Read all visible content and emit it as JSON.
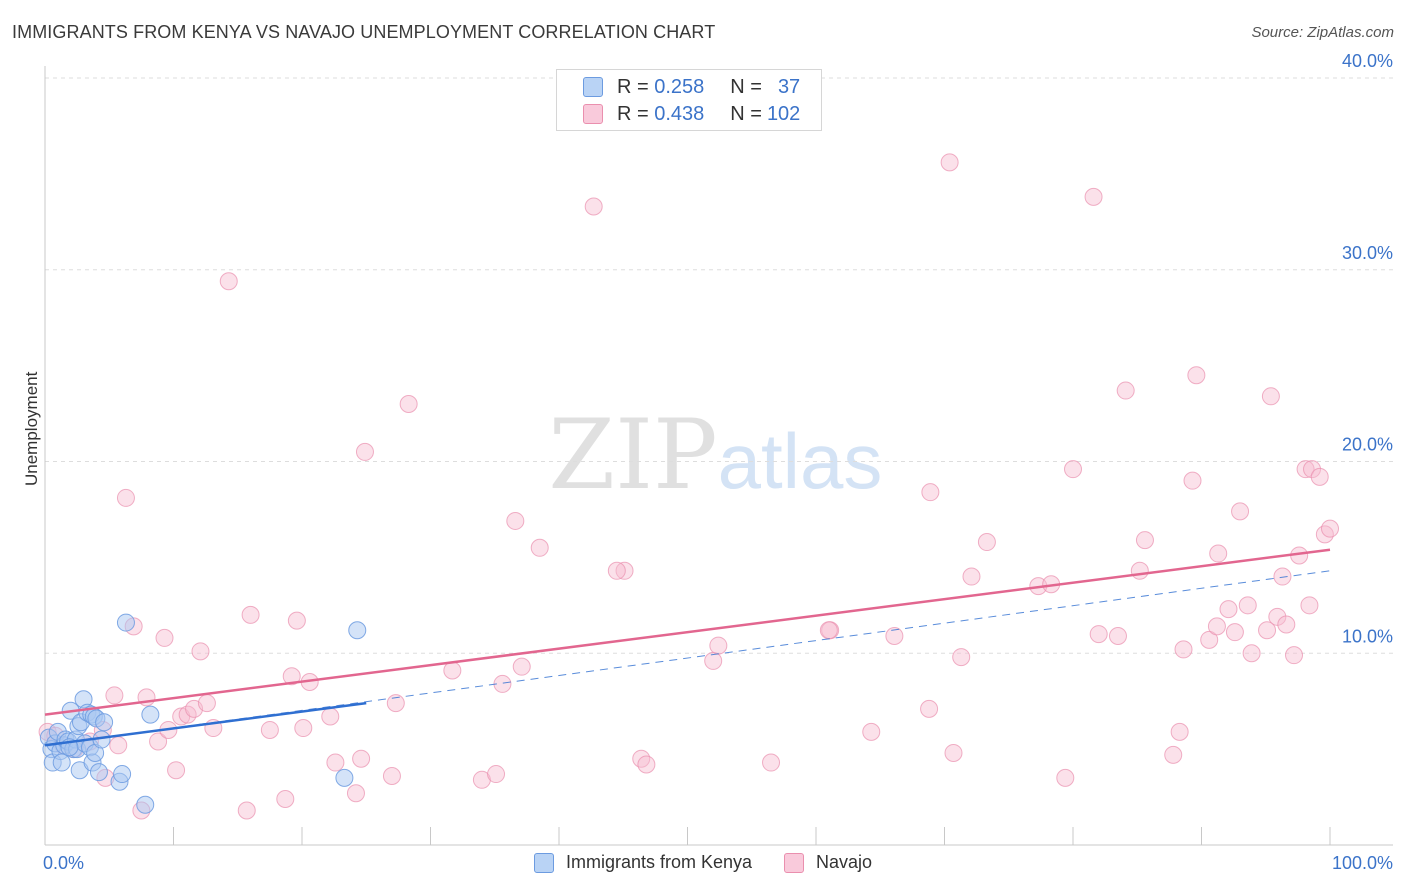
{
  "title": "IMMIGRANTS FROM KENYA VS NAVAJO UNEMPLOYMENT CORRELATION CHART",
  "source": "Source: ZipAtlas.com",
  "watermark": {
    "zip": "ZIP",
    "atlas": "atlas"
  },
  "legend": {
    "rows": [
      {
        "r_label": "R =",
        "r_value": "0.258",
        "n_label": "N =",
        "n_value": "37"
      },
      {
        "r_label": "R =",
        "r_value": "0.438",
        "n_label": "N =",
        "n_value": "102"
      }
    ]
  },
  "colors": {
    "kenya_fill": "#a9c8f2",
    "kenya_stroke": "#6c9be0",
    "kenya_line": "#2f6fd1",
    "navajo_fill": "#f7bcd0",
    "navajo_stroke": "#ea8fae",
    "navajo_line": "#e2668f",
    "grid": "#dddddd",
    "tick_text": "#3b73c9"
  },
  "chart_data": {
    "type": "scatter",
    "title": "IMMIGRANTS FROM KENYA VS NAVAJO UNEMPLOYMENT CORRELATION CHART",
    "xlabel": "",
    "ylabel": "Unemployment",
    "xlim": [
      0,
      100
    ],
    "ylim": [
      0,
      40
    ],
    "x_tick_labels": [
      "0.0%",
      "100.0%"
    ],
    "y_ticks": [
      10,
      20,
      30,
      40
    ],
    "y_tick_labels": [
      "10.0%",
      "20.0%",
      "30.0%",
      "40.0%"
    ],
    "legend_position": "bottom-center",
    "series": [
      {
        "name": "Immigrants from Kenya",
        "r": 0.258,
        "n": 37,
        "trend": {
          "x": [
            0,
            25
          ],
          "y": [
            5.2,
            7.4
          ]
        },
        "dashed_trend": {
          "x": [
            0,
            100
          ],
          "y": [
            5.2,
            14.3
          ]
        },
        "points": [
          [
            0.3,
            5.6
          ],
          [
            0.5,
            5.0
          ],
          [
            0.6,
            4.3
          ],
          [
            0.8,
            5.3
          ],
          [
            1.0,
            5.9
          ],
          [
            1.2,
            4.9
          ],
          [
            1.3,
            4.3
          ],
          [
            1.5,
            5.2
          ],
          [
            1.6,
            5.5
          ],
          [
            1.8,
            5.4
          ],
          [
            2.0,
            7.0
          ],
          [
            2.2,
            5.0
          ],
          [
            2.4,
            5.5
          ],
          [
            2.5,
            5.0
          ],
          [
            2.6,
            6.2
          ],
          [
            2.7,
            3.9
          ],
          [
            2.8,
            6.4
          ],
          [
            3.0,
            7.6
          ],
          [
            3.1,
            5.3
          ],
          [
            3.3,
            6.9
          ],
          [
            3.5,
            5.1
          ],
          [
            3.6,
            6.8
          ],
          [
            3.7,
            4.3
          ],
          [
            3.8,
            6.7
          ],
          [
            3.9,
            4.8
          ],
          [
            4.0,
            6.6
          ],
          [
            4.2,
            3.8
          ],
          [
            4.4,
            5.5
          ],
          [
            4.6,
            6.4
          ],
          [
            5.8,
            3.3
          ],
          [
            6.0,
            3.7
          ],
          [
            6.3,
            11.6
          ],
          [
            7.8,
            2.1
          ],
          [
            8.2,
            6.8
          ],
          [
            23.3,
            3.5
          ],
          [
            24.3,
            11.2
          ],
          [
            1.9,
            5.1
          ]
        ]
      },
      {
        "name": "Navajo",
        "r": 0.438,
        "n": 102,
        "trend": {
          "x": [
            0,
            100
          ],
          "y": [
            6.8,
            15.4
          ]
        },
        "points": [
          [
            0.2,
            5.9
          ],
          [
            0.8,
            5.7
          ],
          [
            1.4,
            5.2
          ],
          [
            2.3,
            5.0
          ],
          [
            3.5,
            5.4
          ],
          [
            4.5,
            6.0
          ],
          [
            4.7,
            3.5
          ],
          [
            5.4,
            7.8
          ],
          [
            5.7,
            5.2
          ],
          [
            6.3,
            18.1
          ],
          [
            6.9,
            11.4
          ],
          [
            7.5,
            1.8
          ],
          [
            7.9,
            7.7
          ],
          [
            8.8,
            5.4
          ],
          [
            9.3,
            10.8
          ],
          [
            9.6,
            6.0
          ],
          [
            10.2,
            3.9
          ],
          [
            10.6,
            6.7
          ],
          [
            11.1,
            6.8
          ],
          [
            11.6,
            7.1
          ],
          [
            12.1,
            10.1
          ],
          [
            12.6,
            7.4
          ],
          [
            13.1,
            6.1
          ],
          [
            14.3,
            29.4
          ],
          [
            15.7,
            1.8
          ],
          [
            16.0,
            12.0
          ],
          [
            17.5,
            6.0
          ],
          [
            18.7,
            2.4
          ],
          [
            19.2,
            8.8
          ],
          [
            19.6,
            11.7
          ],
          [
            20.1,
            6.1
          ],
          [
            20.6,
            8.5
          ],
          [
            22.2,
            6.7
          ],
          [
            22.6,
            4.3
          ],
          [
            24.2,
            2.7
          ],
          [
            24.6,
            4.5
          ],
          [
            24.9,
            20.5
          ],
          [
            27.0,
            3.6
          ],
          [
            27.3,
            7.4
          ],
          [
            28.3,
            23.0
          ],
          [
            31.7,
            9.1
          ],
          [
            34.0,
            3.4
          ],
          [
            35.1,
            3.7
          ],
          [
            35.6,
            8.4
          ],
          [
            36.6,
            16.9
          ],
          [
            37.1,
            9.3
          ],
          [
            38.5,
            15.5
          ],
          [
            42.7,
            33.3
          ],
          [
            45.1,
            14.3
          ],
          [
            46.4,
            4.5
          ],
          [
            46.8,
            4.2
          ],
          [
            52.0,
            9.6
          ],
          [
            52.4,
            10.4
          ],
          [
            56.5,
            4.3
          ],
          [
            61.1,
            11.2
          ],
          [
            64.3,
            5.9
          ],
          [
            66.1,
            10.9
          ],
          [
            68.8,
            7.1
          ],
          [
            68.9,
            18.4
          ],
          [
            70.4,
            35.6
          ],
          [
            70.7,
            4.8
          ],
          [
            71.3,
            9.8
          ],
          [
            72.1,
            14.0
          ],
          [
            73.3,
            15.8
          ],
          [
            77.3,
            13.5
          ],
          [
            78.3,
            13.6
          ],
          [
            79.4,
            3.5
          ],
          [
            80.0,
            19.6
          ],
          [
            81.6,
            33.8
          ],
          [
            82.0,
            11.0
          ],
          [
            83.5,
            10.9
          ],
          [
            84.1,
            23.7
          ],
          [
            85.2,
            14.3
          ],
          [
            85.6,
            15.9
          ],
          [
            87.8,
            4.7
          ],
          [
            88.3,
            5.9
          ],
          [
            88.6,
            10.2
          ],
          [
            89.3,
            19.0
          ],
          [
            89.6,
            24.5
          ],
          [
            90.6,
            10.7
          ],
          [
            91.2,
            11.4
          ],
          [
            91.3,
            15.2
          ],
          [
            92.1,
            12.3
          ],
          [
            92.6,
            11.1
          ],
          [
            93.0,
            17.4
          ],
          [
            93.6,
            12.5
          ],
          [
            93.9,
            10.0
          ],
          [
            95.1,
            11.2
          ],
          [
            95.4,
            23.4
          ],
          [
            95.9,
            11.9
          ],
          [
            96.3,
            14.0
          ],
          [
            96.6,
            11.5
          ],
          [
            97.2,
            9.9
          ],
          [
            97.6,
            15.1
          ],
          [
            98.1,
            19.6
          ],
          [
            98.4,
            12.5
          ],
          [
            98.6,
            19.6
          ],
          [
            99.2,
            19.2
          ],
          [
            99.6,
            16.2
          ],
          [
            100.0,
            16.5
          ],
          [
            44.5,
            14.3
          ],
          [
            61.0,
            11.2
          ]
        ]
      }
    ]
  },
  "bottom_legend": {
    "kenya_label": "Immigrants from Kenya",
    "navajo_label": "Navajo"
  }
}
